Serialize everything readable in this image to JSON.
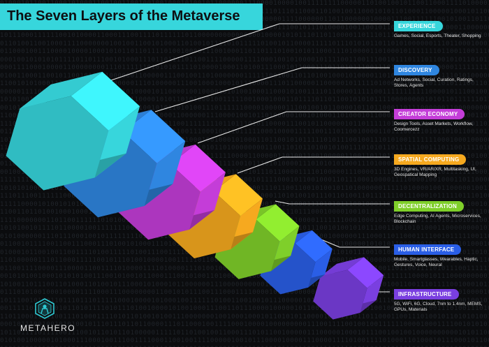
{
  "title": "The Seven Layers of the Metaverse",
  "brand": {
    "name": "METAHERO",
    "logo_icon": "hexagon-hero-icon"
  },
  "background": {
    "pattern": "binary-digits",
    "color": "#0b0c0e"
  },
  "layers": [
    {
      "label": "EXPERIENCE",
      "description": "Games, Social, Esports, Theater, Shopping",
      "color": "#37d6dc"
    },
    {
      "label": "DISCOVERY",
      "description": "Ad Networks, Social, Curation, Ratings, Stores, Agents",
      "color": "#2f86e0"
    },
    {
      "label": "CREATOR ECONOMY",
      "description": "Design Tools, Asset Markets, Workflow, Coomercezz",
      "color": "#c43dd8"
    },
    {
      "label": "SPATIAL COMPUTING",
      "description": "3D Engines, VR/AR/XR, Multitasking, UI, Geospatical Mapping",
      "color": "#f6a91f"
    },
    {
      "label": "DECENTRALIZATION",
      "description": "Edge Computing, AI Agents, Microservices, Blockchain",
      "color": "#7fcf2a"
    },
    {
      "label": "HUMAN INTERFACE",
      "description": "Mobile, Smartglasses, Wearables, Haptic, Gestures, Voice, Neural",
      "color": "#2a5ee6"
    },
    {
      "label": "INFRASTRUCTURE",
      "description": "5G, WiFi, 6G, Cloud, 7nm to 1.4nm, MEMS, GPUs, Materials",
      "color": "#7a3fe0"
    }
  ]
}
